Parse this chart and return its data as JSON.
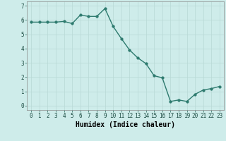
{
  "xlabel": "Humidex (Indice chaleur)",
  "x": [
    0,
    1,
    2,
    3,
    4,
    5,
    6,
    7,
    8,
    9,
    10,
    11,
    12,
    13,
    14,
    15,
    16,
    17,
    18,
    19,
    20,
    21,
    22,
    23
  ],
  "y": [
    5.85,
    5.85,
    5.85,
    5.85,
    5.9,
    5.75,
    6.35,
    6.25,
    6.25,
    6.8,
    5.55,
    4.7,
    3.9,
    3.35,
    2.95,
    2.1,
    1.95,
    0.3,
    0.4,
    0.3,
    0.8,
    1.1,
    1.2,
    1.35
  ],
  "line_color": "#2d7a6e",
  "marker_color": "#2d7a6e",
  "bg_color": "#ceecea",
  "grid_color": "#b8d8d5",
  "ylim": [
    -0.3,
    7.3
  ],
  "xlim": [
    -0.5,
    23.5
  ],
  "yticks": [
    0,
    1,
    2,
    3,
    4,
    5,
    6,
    7
  ],
  "xticks": [
    0,
    1,
    2,
    3,
    4,
    5,
    6,
    7,
    8,
    9,
    10,
    11,
    12,
    13,
    14,
    15,
    16,
    17,
    18,
    19,
    20,
    21,
    22,
    23
  ],
  "tick_fontsize": 5.5,
  "xlabel_fontsize": 7,
  "marker_size": 2.5,
  "line_width": 1.0
}
